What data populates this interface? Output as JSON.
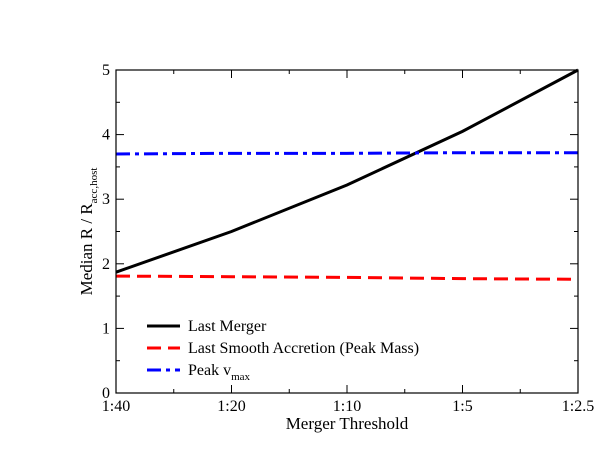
{
  "chart_data": {
    "type": "line",
    "categories": [
      "1:40",
      "1:20",
      "1:10",
      "1:5",
      "1:2.5"
    ],
    "xlabel": "Merger Threshold",
    "ylabel": {
      "main": "Median R / R",
      "sub": "acc,host"
    },
    "ylim": [
      0,
      5
    ],
    "yticks": [
      "0",
      "1",
      "2",
      "3",
      "4",
      "5"
    ],
    "grid": false,
    "legend_position": "bottom-left",
    "series": [
      {
        "name": "Last Merger",
        "legend_label": {
          "main": "Last Merger",
          "sub": ""
        },
        "values": [
          1.87,
          2.5,
          3.22,
          4.05,
          5.0
        ],
        "color": "#000000",
        "style": "solid"
      },
      {
        "name": "Last Smooth Accretion (Peak Mass)",
        "legend_label": {
          "main": "Last Smooth Accretion (Peak Mass)",
          "sub": ""
        },
        "values": [
          1.81,
          1.8,
          1.79,
          1.77,
          1.76
        ],
        "color": "#ff0000",
        "style": "dashed"
      },
      {
        "name": "Peak vmax",
        "legend_label": {
          "main": "Peak v",
          "sub": "max"
        },
        "values": [
          3.7,
          3.71,
          3.71,
          3.72,
          3.72
        ],
        "color": "#0000ff",
        "style": "dashdot"
      }
    ]
  }
}
